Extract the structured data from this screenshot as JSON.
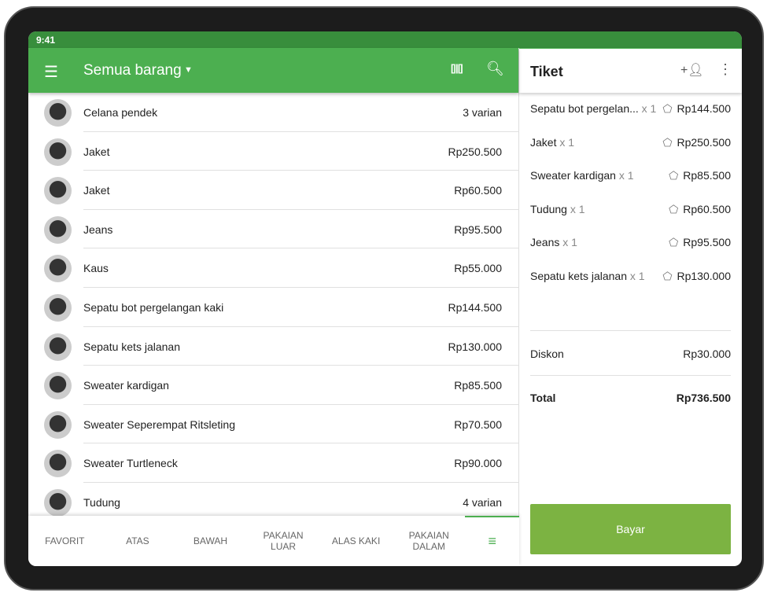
{
  "status": {
    "time": "9:41"
  },
  "toolbar": {
    "title": "Semua barang",
    "menu_icon": "menu-icon",
    "barcode_icon": "barcode-icon",
    "search_icon": "search-icon"
  },
  "items": [
    {
      "name": "Celana pendek",
      "value": "3 varian"
    },
    {
      "name": "Jaket",
      "value": "Rp250.500"
    },
    {
      "name": "Jaket",
      "value": "Rp60.500"
    },
    {
      "name": "Jeans",
      "value": "Rp95.500"
    },
    {
      "name": "Kaus",
      "value": "Rp55.000"
    },
    {
      "name": "Sepatu bot pergelangan kaki",
      "value": "Rp144.500"
    },
    {
      "name": "Sepatu kets jalanan",
      "value": "Rp130.000"
    },
    {
      "name": "Sweater kardigan",
      "value": "Rp85.500"
    },
    {
      "name": "Sweater Seperempat Ritsleting",
      "value": "Rp70.500"
    },
    {
      "name": "Sweater Turtleneck",
      "value": "Rp90.000"
    },
    {
      "name": "Tudung",
      "value": "4 varian"
    }
  ],
  "tabs": [
    "FAVORIT",
    "ATAS",
    "BAWAH",
    "PAKAIAN LUAR",
    "ALAS KAKI",
    "PAKAIAN DALAM"
  ],
  "ticket": {
    "title": "Tiket",
    "lines": [
      {
        "name": "Sepatu bot pergelan...",
        "qty": "x 1",
        "price": "Rp144.500"
      },
      {
        "name": "Jaket",
        "qty": "x 1",
        "price": "Rp250.500"
      },
      {
        "name": "Sweater kardigan",
        "qty": "x 1",
        "price": "Rp85.500"
      },
      {
        "name": "Tudung",
        "qty": "x 1",
        "price": "Rp60.500"
      },
      {
        "name": "Jeans",
        "qty": "x 1",
        "price": "Rp95.500"
      },
      {
        "name": "Sepatu kets jalanan",
        "qty": "x 1",
        "price": "Rp130.000"
      }
    ],
    "discount_label": "Diskon",
    "discount_value": "Rp30.000",
    "total_label": "Total",
    "total_value": "Rp736.500",
    "pay_label": "Bayar"
  },
  "colors": {
    "primary": "#4caf50",
    "status": "#388e3c",
    "pay": "#7cb342"
  }
}
